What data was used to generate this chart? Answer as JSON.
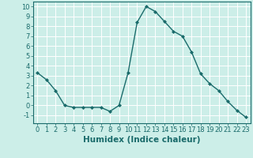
{
  "x": [
    0,
    1,
    2,
    3,
    4,
    5,
    6,
    7,
    8,
    9,
    10,
    11,
    12,
    13,
    14,
    15,
    16,
    17,
    18,
    19,
    20,
    21,
    22,
    23
  ],
  "y": [
    3.3,
    2.6,
    1.5,
    0.0,
    -0.2,
    -0.2,
    -0.2,
    -0.2,
    -0.6,
    0.0,
    3.3,
    8.4,
    10.0,
    9.5,
    8.5,
    7.5,
    7.0,
    5.4,
    3.2,
    2.2,
    1.5,
    0.4,
    -0.5,
    -1.2
  ],
  "line_color": "#1a6b6b",
  "marker": "D",
  "marker_size": 2.0,
  "bg_color": "#cceee8",
  "grid_color": "#ffffff",
  "tick_color": "#1a6b6b",
  "xlabel": "Humidex (Indice chaleur)",
  "ylim": [
    -1.8,
    10.5
  ],
  "xlim": [
    -0.5,
    23.5
  ],
  "yticks": [
    -1,
    0,
    1,
    2,
    3,
    4,
    5,
    6,
    7,
    8,
    9,
    10
  ],
  "xticks": [
    0,
    1,
    2,
    3,
    4,
    5,
    6,
    7,
    8,
    9,
    10,
    11,
    12,
    13,
    14,
    15,
    16,
    17,
    18,
    19,
    20,
    21,
    22,
    23
  ],
  "xlabel_fontsize": 7.5,
  "tick_fontsize": 6.0,
  "linewidth": 1.0
}
